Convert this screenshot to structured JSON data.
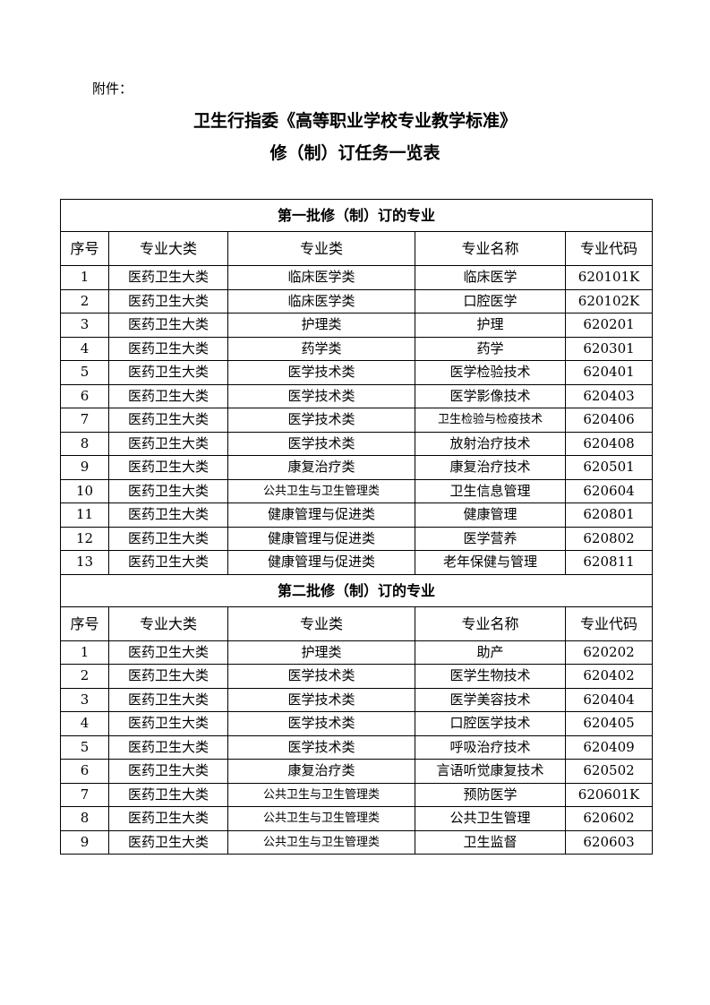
{
  "attachment": "附件：",
  "title_line1": "卫生行指委《高等职业学校专业教学标准》",
  "title_line2": "修（制）订任务一览表",
  "headers": [
    "序号",
    "专业大类",
    "专业类",
    "专业名称",
    "专业代码"
  ],
  "sections": [
    {
      "title": "第一批修（制）订的专业",
      "rows": [
        [
          "1",
          "医药卫生大类",
          "临床医学类",
          "临床医学",
          "620101K"
        ],
        [
          "2",
          "医药卫生大类",
          "临床医学类",
          "口腔医学",
          "620102K"
        ],
        [
          "3",
          "医药卫生大类",
          "护理类",
          "护理",
          "620201"
        ],
        [
          "4",
          "医药卫生大类",
          "药学类",
          "药学",
          "620301"
        ],
        [
          "5",
          "医药卫生大类",
          "医学技术类",
          "医学检验技术",
          "620401"
        ],
        [
          "6",
          "医药卫生大类",
          "医学技术类",
          "医学影像技术",
          "620403"
        ],
        [
          "7",
          "医药卫生大类",
          "医学技术类",
          "卫生检验与检疫技术",
          "620406"
        ],
        [
          "8",
          "医药卫生大类",
          "医学技术类",
          "放射治疗技术",
          "620408"
        ],
        [
          "9",
          "医药卫生大类",
          "康复治疗类",
          "康复治疗技术",
          "620501"
        ],
        [
          "10",
          "医药卫生大类",
          "公共卫生与卫生管理类",
          "卫生信息管理",
          "620604"
        ],
        [
          "11",
          "医药卫生大类",
          "健康管理与促进类",
          "健康管理",
          "620801"
        ],
        [
          "12",
          "医药卫生大类",
          "健康管理与促进类",
          "医学营养",
          "620802"
        ],
        [
          "13",
          "医药卫生大类",
          "健康管理与促进类",
          "老年保健与管理",
          "620811"
        ]
      ]
    },
    {
      "title": "第二批修（制）订的专业",
      "rows": [
        [
          "1",
          "医药卫生大类",
          "护理类",
          "助产",
          "620202"
        ],
        [
          "2",
          "医药卫生大类",
          "医学技术类",
          "医学生物技术",
          "620402"
        ],
        [
          "3",
          "医药卫生大类",
          "医学技术类",
          "医学美容技术",
          "620404"
        ],
        [
          "4",
          "医药卫生大类",
          "医学技术类",
          "口腔医学技术",
          "620405"
        ],
        [
          "5",
          "医药卫生大类",
          "医学技术类",
          "呼吸治疗技术",
          "620409"
        ],
        [
          "6",
          "医药卫生大类",
          "康复治疗类",
          "言语听觉康复技术",
          "620502"
        ],
        [
          "7",
          "医药卫生大类",
          "公共卫生与卫生管理类",
          "预防医学",
          "620601K"
        ],
        [
          "8",
          "医药卫生大类",
          "公共卫生与卫生管理类",
          "公共卫生管理",
          "620602"
        ],
        [
          "9",
          "医药卫生大类",
          "公共卫生与卫生管理类",
          "卫生监督",
          "620603"
        ]
      ]
    }
  ]
}
